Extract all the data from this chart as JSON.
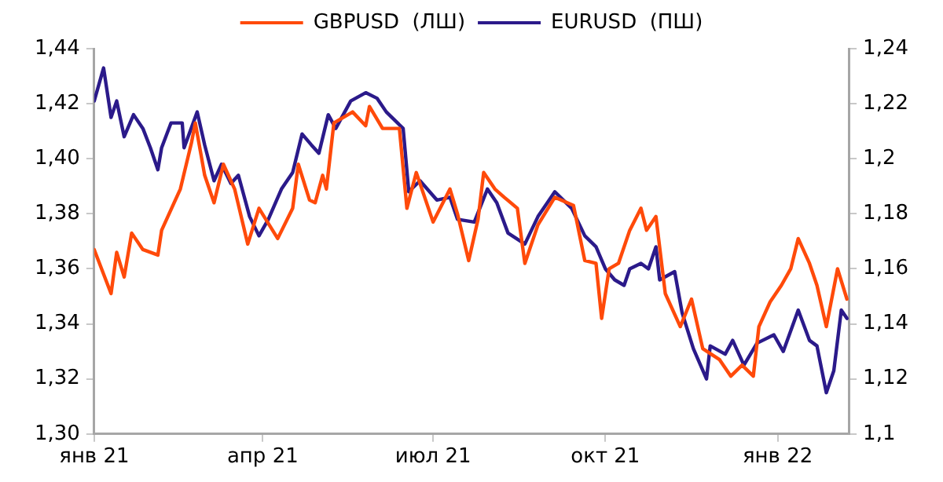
{
  "chart_data": {
    "type": "line",
    "xlim": [
      "2021-01-01",
      "2022-02-08"
    ],
    "xticks": [
      {
        "value": "2021-01-01",
        "label": "янв 21"
      },
      {
        "value": "2021-04-01",
        "label": "апр 21"
      },
      {
        "value": "2021-07-01",
        "label": "июл 21"
      },
      {
        "value": "2021-10-01",
        "label": "окт 21"
      },
      {
        "value": "2022-01-01",
        "label": "янв 22"
      }
    ],
    "ylim": [
      1.3,
      1.44
    ],
    "yticks": [
      {
        "value": 1.3,
        "label": "1,30"
      },
      {
        "value": 1.32,
        "label": "1,32"
      },
      {
        "value": 1.34,
        "label": "1,34"
      },
      {
        "value": 1.36,
        "label": "1,36"
      },
      {
        "value": 1.38,
        "label": "1,38"
      },
      {
        "value": 1.4,
        "label": "1,40"
      },
      {
        "value": 1.42,
        "label": "1,42"
      },
      {
        "value": 1.44,
        "label": "1,44"
      }
    ],
    "y2lim": [
      1.1,
      1.24
    ],
    "y2ticks": [
      {
        "value": 1.1,
        "label": "1,1"
      },
      {
        "value": 1.12,
        "label": "1,12"
      },
      {
        "value": 1.14,
        "label": "1,14"
      },
      {
        "value": 1.16,
        "label": "1,16"
      },
      {
        "value": 1.18,
        "label": "1,18"
      },
      {
        "value": 1.2,
        "label": "1,2"
      },
      {
        "value": 1.22,
        "label": "1,22"
      },
      {
        "value": 1.24,
        "label": "1,24"
      }
    ],
    "grid": false,
    "legend": "top",
    "marker": "none",
    "line_style": "solid",
    "series": [
      {
        "name": "GBPUSD  (ЛШ)",
        "color": "#ff4a0a",
        "x": [
          "2021-01-01",
          "2021-01-10",
          "2021-01-13",
          "2021-01-17",
          "2021-01-21",
          "2021-01-27",
          "2021-02-04",
          "2021-02-06",
          "2021-02-16",
          "2021-02-22",
          "2021-02-24",
          "2021-03-01",
          "2021-03-06",
          "2021-03-11",
          "2021-03-17",
          "2021-03-24",
          "2021-03-30",
          "2021-04-09",
          "2021-04-17",
          "2021-04-20",
          "2021-04-26",
          "2021-04-29",
          "2021-05-03",
          "2021-05-05",
          "2021-05-09",
          "2021-05-14",
          "2021-05-19",
          "2021-05-26",
          "2021-05-28",
          "2021-06-04",
          "2021-06-13",
          "2021-06-17",
          "2021-06-22",
          "2021-07-01",
          "2021-07-10",
          "2021-07-14",
          "2021-07-20",
          "2021-07-25",
          "2021-07-28",
          "2021-08-03",
          "2021-08-08",
          "2021-08-15",
          "2021-08-19",
          "2021-08-26",
          "2021-09-04",
          "2021-09-14",
          "2021-09-20",
          "2021-09-26",
          "2021-09-29",
          "2021-10-03",
          "2021-10-08",
          "2021-10-14",
          "2021-10-20",
          "2021-10-23",
          "2021-10-28",
          "2021-11-02",
          "2021-11-10",
          "2021-11-16",
          "2021-11-22",
          "2021-12-01",
          "2021-12-07",
          "2021-12-13",
          "2021-12-19",
          "2021-12-22",
          "2021-12-28",
          "2022-01-03",
          "2022-01-08",
          "2022-01-12",
          "2022-01-18",
          "2022-01-22",
          "2022-01-27",
          "2022-02-02",
          "2022-02-07"
        ],
        "values": [
          1.367,
          1.351,
          1.366,
          1.357,
          1.373,
          1.367,
          1.365,
          1.374,
          1.389,
          1.406,
          1.413,
          1.394,
          1.384,
          1.398,
          1.389,
          1.369,
          1.382,
          1.371,
          1.382,
          1.398,
          1.385,
          1.384,
          1.394,
          1.389,
          1.413,
          1.415,
          1.417,
          1.412,
          1.419,
          1.411,
          1.411,
          1.382,
          1.395,
          1.377,
          1.389,
          1.38,
          1.363,
          1.378,
          1.395,
          1.389,
          1.386,
          1.382,
          1.362,
          1.376,
          1.386,
          1.383,
          1.363,
          1.362,
          1.342,
          1.36,
          1.362,
          1.374,
          1.382,
          1.374,
          1.379,
          1.351,
          1.339,
          1.349,
          1.331,
          1.327,
          1.321,
          1.325,
          1.321,
          1.339,
          1.348,
          1.354,
          1.36,
          1.371,
          1.362,
          1.354,
          1.339,
          1.36,
          1.349
        ]
      },
      {
        "name": "EURUSD  (ПШ)",
        "color": "#2b1a8a",
        "axis": "y2",
        "x": [
          "2021-01-01",
          "2021-01-06",
          "2021-01-10",
          "2021-01-13",
          "2021-01-17",
          "2021-01-22",
          "2021-01-27",
          "2021-01-31",
          "2021-02-04",
          "2021-02-06",
          "2021-02-11",
          "2021-02-17",
          "2021-02-18",
          "2021-02-25",
          "2021-03-01",
          "2021-03-06",
          "2021-03-10",
          "2021-03-15",
          "2021-03-19",
          "2021-03-25",
          "2021-03-30",
          "2021-04-04",
          "2021-04-11",
          "2021-04-17",
          "2021-04-22",
          "2021-04-27",
          "2021-05-01",
          "2021-05-06",
          "2021-05-10",
          "2021-05-18",
          "2021-05-26",
          "2021-06-01",
          "2021-06-06",
          "2021-06-15",
          "2021-06-18",
          "2021-06-24",
          "2021-07-03",
          "2021-07-10",
          "2021-07-14",
          "2021-07-23",
          "2021-07-30",
          "2021-08-04",
          "2021-08-10",
          "2021-08-19",
          "2021-08-26",
          "2021-09-04",
          "2021-09-13",
          "2021-09-20",
          "2021-09-26",
          "2021-10-01",
          "2021-10-06",
          "2021-10-11",
          "2021-10-14",
          "2021-10-20",
          "2021-10-24",
          "2021-10-28",
          "2021-10-30",
          "2021-11-07",
          "2021-11-11",
          "2021-11-17",
          "2021-11-24",
          "2021-11-26",
          "2021-12-04",
          "2021-12-08",
          "2021-12-14",
          "2021-12-21",
          "2021-12-30",
          "2022-01-04",
          "2022-01-12",
          "2022-01-18",
          "2022-01-22",
          "2022-01-27",
          "2022-01-31",
          "2022-02-04",
          "2022-02-07"
        ],
        "values": [
          1.221,
          1.233,
          1.215,
          1.221,
          1.208,
          1.216,
          1.211,
          1.204,
          1.196,
          1.204,
          1.213,
          1.213,
          1.204,
          1.217,
          1.205,
          1.192,
          1.198,
          1.191,
          1.194,
          1.179,
          1.172,
          1.178,
          1.189,
          1.195,
          1.209,
          1.205,
          1.202,
          1.216,
          1.211,
          1.221,
          1.224,
          1.222,
          1.217,
          1.211,
          1.188,
          1.192,
          1.185,
          1.186,
          1.178,
          1.177,
          1.189,
          1.184,
          1.173,
          1.169,
          1.179,
          1.188,
          1.182,
          1.172,
          1.168,
          1.16,
          1.156,
          1.154,
          1.16,
          1.162,
          1.16,
          1.168,
          1.156,
          1.159,
          1.144,
          1.131,
          1.12,
          1.132,
          1.129,
          1.134,
          1.125,
          1.133,
          1.136,
          1.13,
          1.145,
          1.134,
          1.132,
          1.115,
          1.123,
          1.145,
          1.142
        ]
      }
    ]
  }
}
